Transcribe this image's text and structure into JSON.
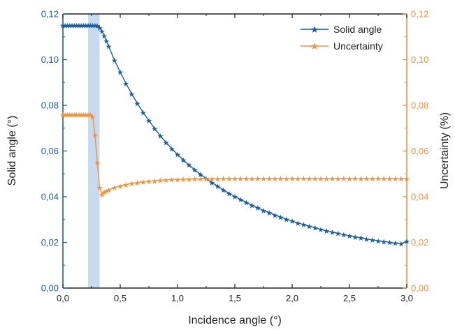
{
  "chart_data": {
    "type": "line",
    "xlabel": "Incidence angle (°)",
    "ylabel_left": "Solid angle (°)",
    "ylabel_right": "Uncertainty (%)",
    "xlim": [
      0,
      3.0
    ],
    "ylim_left": [
      0,
      0.12
    ],
    "ylim_right": [
      0,
      0.12
    ],
    "x_ticks": [
      "0,0",
      "0,5",
      "1,0",
      "1,5",
      "2,0",
      "2,5",
      "3,0"
    ],
    "y_ticks_left": [
      "0,00",
      "0,02",
      "0,04",
      "0,06",
      "0,08",
      "0,10",
      "0,12"
    ],
    "y_ticks_right": [
      "0,00",
      "0,02",
      "0,04",
      "0,06",
      "0,08",
      "0,10",
      "0,12"
    ],
    "grid": false,
    "legend_position": "top-right",
    "highlight_band": {
      "x_start": 0.22,
      "x_end": 0.32,
      "color": "#bcd4ee"
    },
    "series": [
      {
        "name": "Solid angle",
        "axis": "left",
        "color": "#1a5ea0",
        "marker": "star",
        "x": [
          0.0,
          0.02,
          0.04,
          0.06,
          0.08,
          0.1,
          0.12,
          0.14,
          0.16,
          0.18,
          0.2,
          0.22,
          0.24,
          0.26,
          0.28,
          0.3,
          0.32,
          0.34,
          0.36,
          0.38,
          0.4,
          0.45,
          0.5,
          0.55,
          0.6,
          0.65,
          0.7,
          0.75,
          0.8,
          0.85,
          0.9,
          0.95,
          1.0,
          1.05,
          1.1,
          1.15,
          1.2,
          1.25,
          1.3,
          1.35,
          1.4,
          1.45,
          1.5,
          1.55,
          1.6,
          1.65,
          1.7,
          1.75,
          1.8,
          1.85,
          1.9,
          1.95,
          2.0,
          2.05,
          2.1,
          2.15,
          2.2,
          2.25,
          2.3,
          2.35,
          2.4,
          2.45,
          2.5,
          2.55,
          2.6,
          2.65,
          2.7,
          2.75,
          2.8,
          2.85,
          2.9,
          2.95,
          3.0
        ],
        "y": [
          0.115,
          0.115,
          0.115,
          0.115,
          0.115,
          0.115,
          0.115,
          0.115,
          0.115,
          0.115,
          0.115,
          0.115,
          0.115,
          0.115,
          0.115,
          0.1148,
          0.114,
          0.1125,
          0.1105,
          0.1082,
          0.1058,
          0.0998,
          0.0945,
          0.0896,
          0.085,
          0.0808,
          0.0769,
          0.0733,
          0.0699,
          0.0667,
          0.0637,
          0.061,
          0.0585,
          0.0561,
          0.0539,
          0.0518,
          0.0498,
          0.048,
          0.0462,
          0.0446,
          0.043,
          0.0415,
          0.0401,
          0.0388,
          0.0375,
          0.0363,
          0.0351,
          0.034,
          0.033,
          0.032,
          0.0311,
          0.0302,
          0.0293,
          0.0285,
          0.0278,
          0.0271,
          0.0264,
          0.0257,
          0.0251,
          0.0245,
          0.024,
          0.0234,
          0.0229,
          0.0224,
          0.022,
          0.0215,
          0.0211,
          0.0207,
          0.0204,
          0.02,
          0.0197,
          0.0194,
          0.0205
        ]
      },
      {
        "name": "Uncertainty",
        "axis": "right",
        "color": "#f2923a",
        "marker": "star",
        "x": [
          0.0,
          0.02,
          0.04,
          0.06,
          0.08,
          0.1,
          0.12,
          0.14,
          0.16,
          0.18,
          0.2,
          0.22,
          0.24,
          0.26,
          0.28,
          0.3,
          0.32,
          0.34,
          0.36,
          0.38,
          0.4,
          0.45,
          0.5,
          0.55,
          0.6,
          0.65,
          0.7,
          0.75,
          0.8,
          0.85,
          0.9,
          0.95,
          1.0,
          1.05,
          1.1,
          1.15,
          1.2,
          1.25,
          1.3,
          1.35,
          1.4,
          1.45,
          1.5,
          1.55,
          1.6,
          1.65,
          1.7,
          1.75,
          1.8,
          1.85,
          1.9,
          1.95,
          2.0,
          2.05,
          2.1,
          2.15,
          2.2,
          2.25,
          2.3,
          2.35,
          2.4,
          2.45,
          2.5,
          2.55,
          2.6,
          2.65,
          2.7,
          2.75,
          2.8,
          2.85,
          2.9,
          2.95,
          3.0
        ],
        "y": [
          0.076,
          0.076,
          0.076,
          0.076,
          0.076,
          0.076,
          0.076,
          0.076,
          0.076,
          0.076,
          0.076,
          0.076,
          0.076,
          0.075,
          0.067,
          0.055,
          0.044,
          0.041,
          0.042,
          0.0425,
          0.043,
          0.044,
          0.0447,
          0.0453,
          0.0458,
          0.0462,
          0.0465,
          0.0468,
          0.047,
          0.0472,
          0.0474,
          0.0475,
          0.0476,
          0.0477,
          0.0477,
          0.0478,
          0.0478,
          0.0479,
          0.0479,
          0.0479,
          0.048,
          0.048,
          0.048,
          0.048,
          0.048,
          0.048,
          0.048,
          0.048,
          0.048,
          0.048,
          0.048,
          0.048,
          0.048,
          0.048,
          0.048,
          0.048,
          0.048,
          0.048,
          0.048,
          0.048,
          0.048,
          0.048,
          0.048,
          0.048,
          0.048,
          0.048,
          0.048,
          0.048,
          0.048,
          0.048,
          0.048,
          0.048,
          0.048
        ]
      }
    ]
  }
}
